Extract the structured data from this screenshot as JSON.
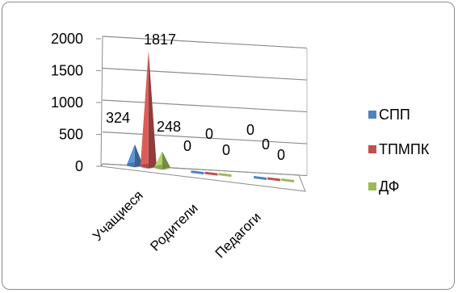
{
  "chart_data": {
    "type": "bar",
    "subtype": "3d-cone",
    "categories": [
      "Учащиеся",
      "Родители",
      "Педагоги"
    ],
    "series": [
      {
        "name": "СПП",
        "values": [
          324,
          0,
          0
        ],
        "color": "#4f81bd"
      },
      {
        "name": "ТПМПК",
        "values": [
          1817,
          0,
          0
        ],
        "color": "#c0504d"
      },
      {
        "name": "ДФ",
        "values": [
          248,
          0,
          0
        ],
        "color": "#9bbb59"
      }
    ],
    "yticks": [
      0,
      500,
      1000,
      1500,
      2000
    ],
    "ylim": [
      0,
      2000
    ],
    "grid": true,
    "legend": "right",
    "title": "",
    "xlabel": "",
    "ylabel": ""
  }
}
